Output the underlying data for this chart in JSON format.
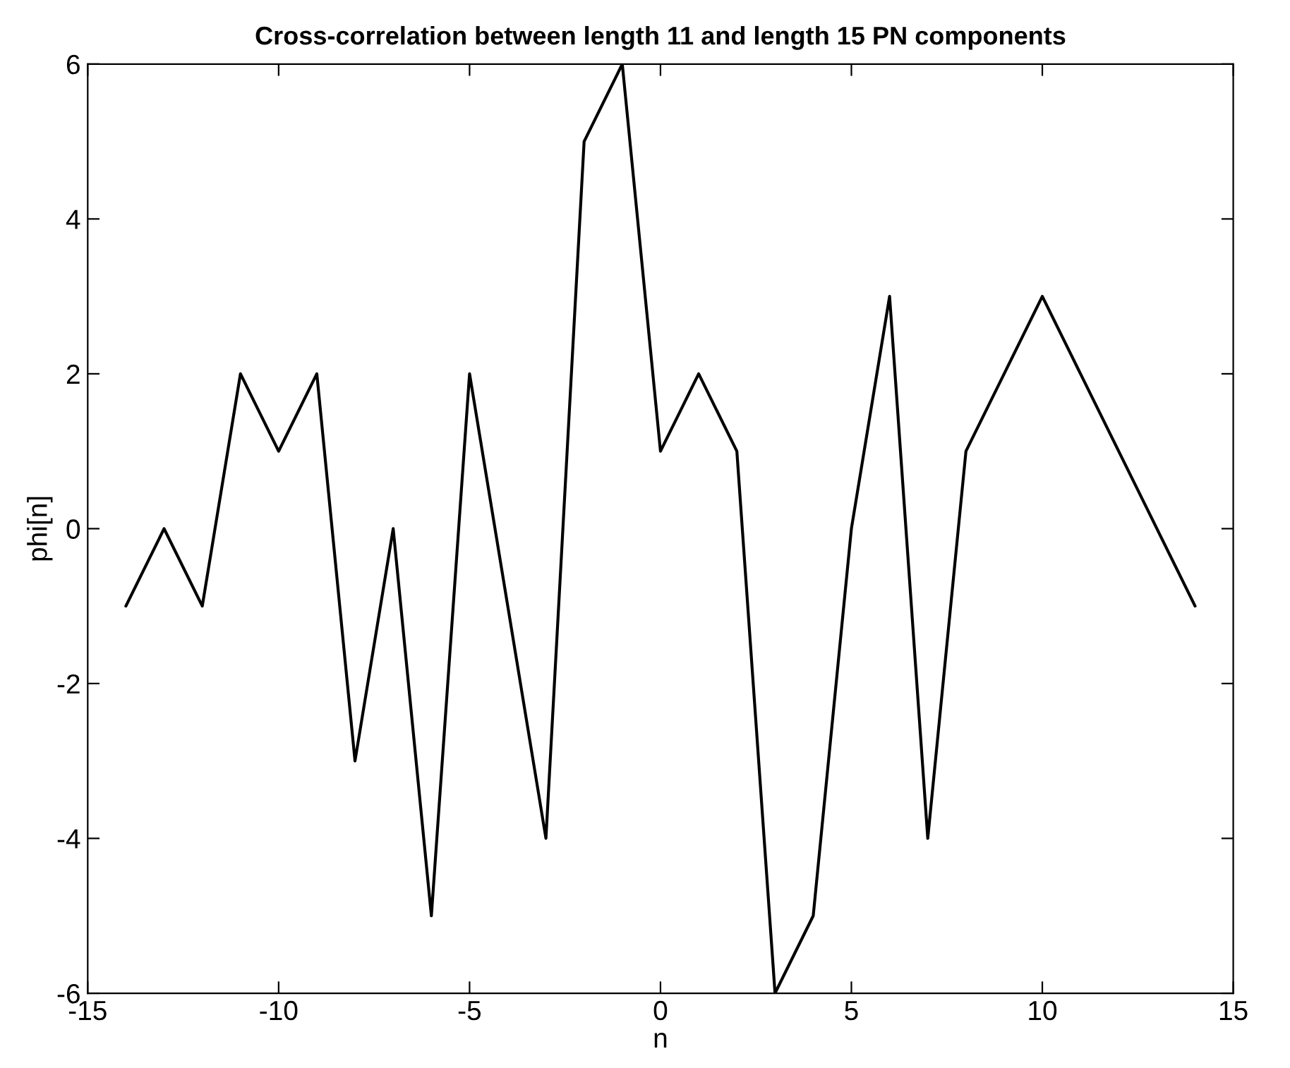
{
  "chart_data": {
    "type": "line",
    "title": "Cross-correlation between length 11 and length 15 PN components",
    "xlabel": "n",
    "ylabel": "phi[n]",
    "x": [
      -14,
      -13,
      -12,
      -11,
      -10,
      -9,
      -8,
      -7,
      -6,
      -5,
      -4,
      -3,
      -2,
      -1,
      0,
      1,
      2,
      3,
      4,
      5,
      6,
      7,
      8,
      9,
      10,
      11,
      12,
      13,
      14
    ],
    "series": [
      {
        "color": "#000000",
        "values": [
          -1,
          0,
          -1,
          2,
          1,
          2,
          -3,
          0,
          -5,
          2,
          -1,
          -4,
          5,
          6,
          1,
          2,
          1,
          -6,
          -5,
          0,
          3,
          -4,
          1,
          2,
          3,
          2,
          1,
          0,
          -1
        ]
      }
    ],
    "xlim": [
      -15,
      15
    ],
    "xticks": [
      -15,
      -10,
      -5,
      0,
      5,
      10,
      15
    ],
    "ylim": [
      -6,
      6
    ],
    "yticks": [
      -6,
      -4,
      -2,
      0,
      2,
      4,
      6
    ],
    "grid": false,
    "marker": "none",
    "line_style": "solid"
  }
}
